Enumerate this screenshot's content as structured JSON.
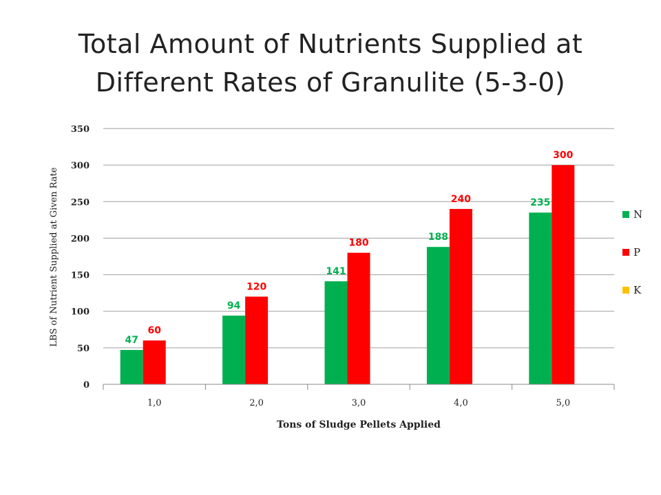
{
  "title": {
    "line1": "Total Amount of Nutrients Supplied at",
    "line2": "Different Rates of Granulite (5-3-0)"
  },
  "chart_data": {
    "type": "bar",
    "title": "Total Amount of Nutrients Supplied at Different Rates of Granulite (5-3-0)",
    "xlabel": "Tons of Sludge Pellets Applied",
    "ylabel": "LBS of Nutrient Supplied at Given Rate",
    "categories": [
      "1,0",
      "2,0",
      "3,0",
      "4,0",
      "5,0"
    ],
    "series": [
      {
        "name": "N",
        "color": "#00b050",
        "values": [
          47,
          94,
          141,
          188,
          235
        ]
      },
      {
        "name": "P",
        "color": "#ff0000",
        "values": [
          60,
          120,
          180,
          240,
          300
        ]
      },
      {
        "name": "K",
        "color": "#ffc000",
        "values": [
          0,
          0,
          0,
          0,
          0
        ]
      }
    ],
    "ylim": [
      0,
      350
    ],
    "yticks": [
      0,
      50,
      100,
      150,
      200,
      250,
      300,
      350
    ],
    "grid": true,
    "legend": "right"
  }
}
